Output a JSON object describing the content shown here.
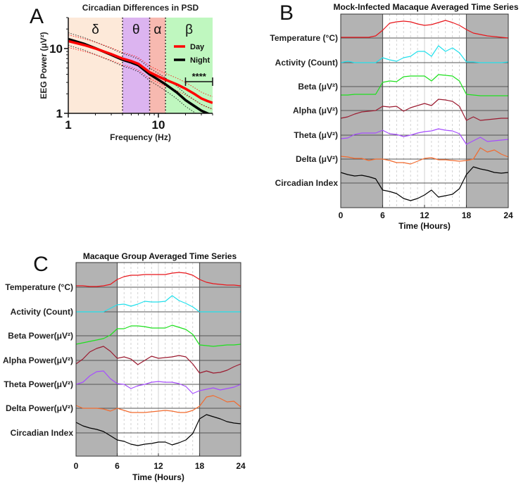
{
  "colors": {
    "day": "#ff0000",
    "night": "#000000",
    "delta_band": "#fde9d9",
    "theta_band": "#dcb4f0",
    "alpha_band": "#f7b9b0",
    "beta_band": "#bff7bf",
    "shade": "#b3b3b3"
  },
  "chart_data": [
    {
      "panel": "A",
      "type": "line",
      "title": "Circadian Differences in PSD",
      "xlabel": "Frequency (Hz)",
      "ylabel": "EEG Power (μV²)",
      "xscale": "log",
      "yscale": "log",
      "xlim": [
        1,
        40
      ],
      "ylim": [
        1,
        30
      ],
      "xtick_labels": [
        "1",
        "10"
      ],
      "ytick_labels": [
        "1",
        "10"
      ],
      "bands": [
        {
          "label": "δ",
          "range": [
            1,
            4
          ],
          "color": "#fde9d9"
        },
        {
          "label": "θ",
          "range": [
            4,
            8
          ],
          "color": "#dcb4f0"
        },
        {
          "label": "α",
          "range": [
            8,
            12
          ],
          "color": "#f7b9b0"
        },
        {
          "label": "β",
          "range": [
            12,
            40
          ],
          "color": "#bff7bf"
        }
      ],
      "x": [
        1,
        1.5,
        2,
        3,
        4,
        5,
        6,
        8,
        10,
        12,
        16,
        20,
        25,
        30,
        35,
        40
      ],
      "series": [
        {
          "name": "Day",
          "color": "#ff0000",
          "values": [
            13,
            11.3,
            10,
            8.2,
            7.0,
            6.4,
            5.8,
            4.3,
            3.7,
            3.3,
            2.8,
            2.4,
            2.0,
            1.7,
            1.55,
            1.45
          ]
        },
        {
          "name": "Night",
          "color": "#000000",
          "values": [
            14,
            11.8,
            10.1,
            8.0,
            6.7,
            6.1,
            5.5,
            4.0,
            3.3,
            2.8,
            2.1,
            1.6,
            1.3,
            1.1,
            1.0,
            0.93
          ]
        }
      ],
      "ci_multiplier": 1.25,
      "legend": "right",
      "significance": {
        "label": "****",
        "range": [
          20,
          40
        ]
      }
    },
    {
      "panel": "B",
      "type": "line",
      "title": "Mock-Infected Macaque Averaged Time Series",
      "xlabel": "Time (Hours)",
      "xlim": [
        0,
        24
      ],
      "xtick_labels": [
        "0",
        "6",
        "12",
        "18",
        "24"
      ],
      "night_shading": [
        [
          0,
          6
        ],
        [
          18,
          24
        ]
      ],
      "x": [
        0,
        1,
        2,
        3,
        4,
        5,
        6,
        7,
        8,
        9,
        10,
        11,
        12,
        13,
        14,
        15,
        16,
        17,
        18,
        19,
        20,
        21,
        22,
        23,
        24
      ],
      "series": [
        {
          "name": "Temperature (°C)",
          "color": "#e8161b",
          "values": [
            0.1,
            0.1,
            0.1,
            0.1,
            0.1,
            0.3,
            1.1,
            2.1,
            2.3,
            2.4,
            2.3,
            2.0,
            1.8,
            1.9,
            2.2,
            2.5,
            2.2,
            1.8,
            1.2,
            0.7,
            0.5,
            0.3,
            0.2,
            0.1,
            0
          ]
        },
        {
          "name": "Activity (Count)",
          "color": "#22e0ec",
          "values": [
            0,
            0.2,
            0,
            0,
            0,
            0,
            0.7,
            0.4,
            0.2,
            0.7,
            0.9,
            1.6,
            1.6,
            0.9,
            2.4,
            1.6,
            2.1,
            1.4,
            0.1,
            0.1,
            0,
            0,
            0,
            0,
            0.1
          ]
        },
        {
          "name": "Beta (μV²)",
          "color": "#1ee01e",
          "values": [
            -1.2,
            -1.2,
            -1.1,
            -1.1,
            -1.1,
            -1.1,
            0.6,
            0.8,
            0.7,
            1.4,
            1.5,
            1.5,
            1.5,
            0.8,
            1.7,
            1.6,
            1.5,
            0.8,
            -1.1,
            -1.2,
            -1.3,
            -1.3,
            -1.3,
            -1.3,
            -1.3
          ]
        },
        {
          "name": "Alpha (μV²)",
          "color": "#9b1b30",
          "values": [
            -1.1,
            -0.9,
            -0.5,
            -0.2,
            -0.1,
            0,
            0.6,
            0.5,
            0.6,
            -0.1,
            0.4,
            0.7,
            1.0,
            0.7,
            1.6,
            1.5,
            1.3,
            0.6,
            -1.4,
            -0.9,
            -1.4,
            -1.3,
            -1.2,
            -1.1,
            -1.1
          ]
        },
        {
          "name": "Theta (μV²)",
          "color": "#a64dff",
          "values": [
            -0.5,
            -0.4,
            0.1,
            0.3,
            0.3,
            0.3,
            0.7,
            0.2,
            0.1,
            -0.2,
            0,
            0.3,
            0.5,
            0.6,
            0.9,
            0.7,
            0.6,
            0.2,
            -1.3,
            -0.8,
            -0.3,
            -0.9,
            -0.8,
            -0.7,
            -0.6
          ]
        },
        {
          "name": "Delta (μV²)",
          "color": "#f26b2f",
          "values": [
            0.4,
            0.3,
            0.1,
            0.1,
            -0.2,
            0,
            0,
            -0.2,
            -0.5,
            -0.5,
            -0.7,
            -0.3,
            0.1,
            0.2,
            -0.1,
            -0.1,
            -0.2,
            -0.3,
            -0.2,
            0,
            1.6,
            1.0,
            1.3,
            0.7,
            0.3
          ]
        },
        {
          "name": "Circadian Index",
          "color": "#000000",
          "values": [
            1.5,
            1.2,
            1.0,
            1.1,
            0.9,
            0.6,
            -1.0,
            -1.2,
            -1.5,
            -2.2,
            -2.5,
            -2.2,
            -1.7,
            -1.0,
            -2.0,
            -1.8,
            -1.6,
            -0.8,
            1.2,
            2.3,
            2.0,
            1.8,
            1.5,
            1.4,
            1.5
          ]
        }
      ]
    },
    {
      "panel": "C",
      "type": "line",
      "title": "Macaque Group Averaged Time Series",
      "xlabel": "Time (Hours)",
      "xlim": [
        0,
        24
      ],
      "xtick_labels": [
        "0",
        "6",
        "12",
        "18",
        "24"
      ],
      "night_shading": [
        [
          0,
          6
        ],
        [
          18,
          24
        ]
      ],
      "x": [
        0,
        1,
        2,
        3,
        4,
        5,
        6,
        7,
        8,
        9,
        10,
        11,
        12,
        13,
        14,
        15,
        16,
        17,
        18,
        19,
        20,
        21,
        22,
        23,
        24
      ],
      "series": [
        {
          "name": "Temperature (°C)",
          "color": "#e8161b",
          "values": [
            0.2,
            0.2,
            0.1,
            0.1,
            0.2,
            0.4,
            1.1,
            1.5,
            1.7,
            1.7,
            1.8,
            1.8,
            1.8,
            1.8,
            2.0,
            2.1,
            2.0,
            1.7,
            1.1,
            0.7,
            0.5,
            0.4,
            0.3,
            0.3,
            0.2
          ]
        },
        {
          "name": "Activity (Count)",
          "color": "#22e0ec",
          "values": [
            0,
            0,
            0,
            0,
            0,
            0.5,
            1.0,
            1.1,
            0.8,
            1.1,
            1.5,
            1.4,
            1.4,
            1.5,
            2.3,
            1.6,
            1.2,
            0.7,
            0,
            0,
            0,
            0,
            0,
            0,
            0
          ]
        },
        {
          "name": "Beta Power(μV²)",
          "color": "#1ee01e",
          "values": [
            -1.2,
            -1.0,
            -0.8,
            -0.6,
            -0.4,
            0.1,
            1.0,
            1.0,
            1.4,
            1.4,
            1.3,
            1.1,
            1.1,
            1.1,
            1.5,
            1.2,
            0.9,
            0.2,
            -1.3,
            -1.4,
            -1.5,
            -1.4,
            -1.3,
            -1.3,
            -1.2
          ]
        },
        {
          "name": "Alpha Power(μV²)",
          "color": "#9b1b30",
          "values": [
            -0.5,
            0.2,
            1.2,
            1.7,
            2.0,
            1.3,
            0.3,
            0.5,
            0.2,
            -0.6,
            0,
            0.6,
            0.3,
            0.4,
            0.5,
            0.7,
            0.5,
            -0.5,
            -1.8,
            -1.5,
            -1.8,
            -1.7,
            -1.4,
            -0.9,
            -0.5
          ]
        },
        {
          "name": "Theta Power(μV²)",
          "color": "#a64dff",
          "values": [
            0,
            0.3,
            1.2,
            1.8,
            1.9,
            0.8,
            0.1,
            0,
            -0.6,
            -0.2,
            0,
            0.3,
            0.4,
            0.3,
            0.3,
            0.1,
            -0.3,
            -1.3,
            -0.9,
            -0.7,
            -0.5,
            -0.8,
            -0.6,
            -0.4,
            0
          ]
        },
        {
          "name": "Delta Power(μV²)",
          "color": "#f26b2f",
          "values": [
            0.4,
            0,
            0,
            0,
            -0.1,
            -0.4,
            0,
            -0.3,
            -0.6,
            -0.6,
            -0.6,
            -0.5,
            -0.4,
            -0.3,
            -0.4,
            -0.6,
            -0.6,
            -0.3,
            0.3,
            1.6,
            1.8,
            1.4,
            0.9,
            1.0,
            0.2
          ]
        },
        {
          "name": "Circadian Index",
          "color": "#000000",
          "values": [
            1.5,
            1.0,
            0.7,
            0.5,
            0.2,
            -0.4,
            -1.0,
            -1.2,
            -1.6,
            -1.8,
            -1.6,
            -1.5,
            -1.3,
            -1.3,
            -1.7,
            -1.4,
            -1.0,
            -0.1,
            2.0,
            2.6,
            2.3,
            2.0,
            1.6,
            1.4,
            1.3
          ]
        }
      ]
    }
  ]
}
